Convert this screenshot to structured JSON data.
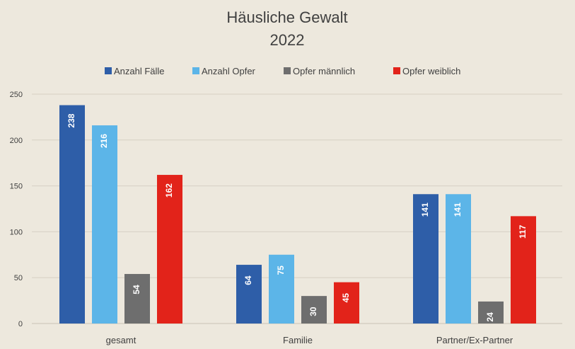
{
  "chart_data": {
    "type": "bar",
    "title": "Häusliche Gewalt",
    "subtitle": "2022",
    "categories": [
      "gesamt",
      "Familie",
      "Partner/Ex-Partner"
    ],
    "series": [
      {
        "name": "Anzahl Fälle",
        "color": "#2e5ea8",
        "values": [
          238,
          64,
          141
        ]
      },
      {
        "name": "Anzahl Opfer",
        "color": "#5cb5e8",
        "values": [
          216,
          75,
          141
        ]
      },
      {
        "name": "Opfer männlich",
        "color": "#6e6e6e",
        "values": [
          54,
          30,
          24
        ]
      },
      {
        "name": "Opfer weiblich",
        "color": "#e2231a",
        "values": [
          162,
          45,
          117
        ]
      }
    ],
    "ylim": [
      0,
      250
    ],
    "yticks": [
      0,
      50,
      100,
      150,
      200,
      250
    ],
    "xlabel": "",
    "ylabel": "",
    "grid": true,
    "legend": "top"
  }
}
